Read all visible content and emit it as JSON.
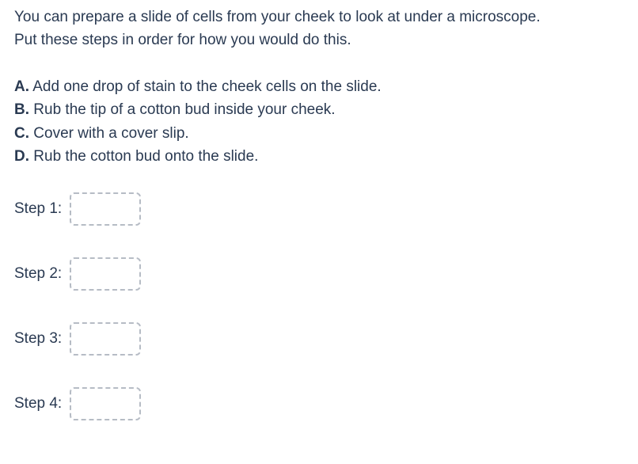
{
  "colors": {
    "text": "#2a3a52",
    "dropzone_border": "#b6bcc5",
    "background": "#ffffff"
  },
  "typography": {
    "base_fontsize": 19,
    "letter_weight": 700
  },
  "intro": {
    "line1": "You can prepare a slide of cells from your cheek to look at under a microscope.",
    "line2": "Put these steps in order for how you would do this."
  },
  "options": [
    {
      "letter": "A.",
      "text": " Add one drop of stain to the cheek cells on the slide."
    },
    {
      "letter": "B.",
      "text": " Rub the tip of a cotton bud inside your cheek."
    },
    {
      "letter": "C.",
      "text": " Cover with a cover slip."
    },
    {
      "letter": "D.",
      "text": " Rub the cotton bud onto the slide."
    }
  ],
  "steps": [
    {
      "label": "Step 1:"
    },
    {
      "label": "Step 2:"
    },
    {
      "label": "Step 3:"
    },
    {
      "label": "Step 4:"
    }
  ],
  "dropzone": {
    "width": 90,
    "height": 42,
    "border_radius": 6
  }
}
